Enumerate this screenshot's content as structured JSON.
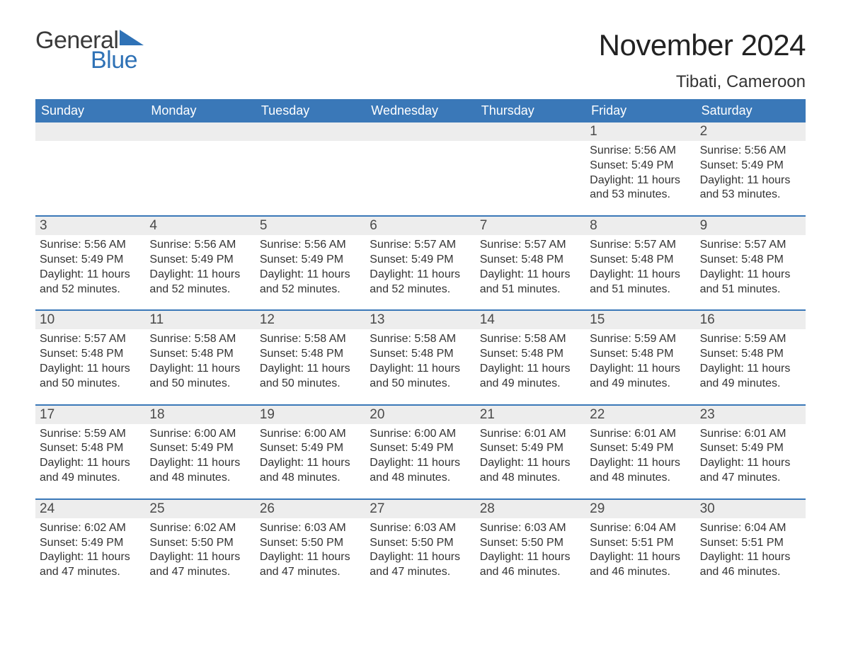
{
  "brand": {
    "word1": "General",
    "word2": "Blue",
    "accent_color": "#2f72b6",
    "text_color": "#3a3a3a"
  },
  "header": {
    "title": "November 2024",
    "location": "Tibati, Cameroon",
    "title_fontsize": 42,
    "location_fontsize": 24
  },
  "calendar": {
    "type": "table",
    "header_bg": "#3a78b8",
    "header_text_color": "#ffffff",
    "daynum_bg": "#ededed",
    "row_divider_color": "#3a78b8",
    "body_text_color": "#333333",
    "background_color": "#ffffff",
    "columns": [
      "Sunday",
      "Monday",
      "Tuesday",
      "Wednesday",
      "Thursday",
      "Friday",
      "Saturday"
    ],
    "weeks": [
      [
        {
          "empty": true
        },
        {
          "empty": true
        },
        {
          "empty": true
        },
        {
          "empty": true
        },
        {
          "empty": true
        },
        {
          "day": "1",
          "sunrise": "Sunrise: 5:56 AM",
          "sunset": "Sunset: 5:49 PM",
          "daylight": "Daylight: 11 hours and 53 minutes."
        },
        {
          "day": "2",
          "sunrise": "Sunrise: 5:56 AM",
          "sunset": "Sunset: 5:49 PM",
          "daylight": "Daylight: 11 hours and 53 minutes."
        }
      ],
      [
        {
          "day": "3",
          "sunrise": "Sunrise: 5:56 AM",
          "sunset": "Sunset: 5:49 PM",
          "daylight": "Daylight: 11 hours and 52 minutes."
        },
        {
          "day": "4",
          "sunrise": "Sunrise: 5:56 AM",
          "sunset": "Sunset: 5:49 PM",
          "daylight": "Daylight: 11 hours and 52 minutes."
        },
        {
          "day": "5",
          "sunrise": "Sunrise: 5:56 AM",
          "sunset": "Sunset: 5:49 PM",
          "daylight": "Daylight: 11 hours and 52 minutes."
        },
        {
          "day": "6",
          "sunrise": "Sunrise: 5:57 AM",
          "sunset": "Sunset: 5:49 PM",
          "daylight": "Daylight: 11 hours and 52 minutes."
        },
        {
          "day": "7",
          "sunrise": "Sunrise: 5:57 AM",
          "sunset": "Sunset: 5:48 PM",
          "daylight": "Daylight: 11 hours and 51 minutes."
        },
        {
          "day": "8",
          "sunrise": "Sunrise: 5:57 AM",
          "sunset": "Sunset: 5:48 PM",
          "daylight": "Daylight: 11 hours and 51 minutes."
        },
        {
          "day": "9",
          "sunrise": "Sunrise: 5:57 AM",
          "sunset": "Sunset: 5:48 PM",
          "daylight": "Daylight: 11 hours and 51 minutes."
        }
      ],
      [
        {
          "day": "10",
          "sunrise": "Sunrise: 5:57 AM",
          "sunset": "Sunset: 5:48 PM",
          "daylight": "Daylight: 11 hours and 50 minutes."
        },
        {
          "day": "11",
          "sunrise": "Sunrise: 5:58 AM",
          "sunset": "Sunset: 5:48 PM",
          "daylight": "Daylight: 11 hours and 50 minutes."
        },
        {
          "day": "12",
          "sunrise": "Sunrise: 5:58 AM",
          "sunset": "Sunset: 5:48 PM",
          "daylight": "Daylight: 11 hours and 50 minutes."
        },
        {
          "day": "13",
          "sunrise": "Sunrise: 5:58 AM",
          "sunset": "Sunset: 5:48 PM",
          "daylight": "Daylight: 11 hours and 50 minutes."
        },
        {
          "day": "14",
          "sunrise": "Sunrise: 5:58 AM",
          "sunset": "Sunset: 5:48 PM",
          "daylight": "Daylight: 11 hours and 49 minutes."
        },
        {
          "day": "15",
          "sunrise": "Sunrise: 5:59 AM",
          "sunset": "Sunset: 5:48 PM",
          "daylight": "Daylight: 11 hours and 49 minutes."
        },
        {
          "day": "16",
          "sunrise": "Sunrise: 5:59 AM",
          "sunset": "Sunset: 5:48 PM",
          "daylight": "Daylight: 11 hours and 49 minutes."
        }
      ],
      [
        {
          "day": "17",
          "sunrise": "Sunrise: 5:59 AM",
          "sunset": "Sunset: 5:48 PM",
          "daylight": "Daylight: 11 hours and 49 minutes."
        },
        {
          "day": "18",
          "sunrise": "Sunrise: 6:00 AM",
          "sunset": "Sunset: 5:49 PM",
          "daylight": "Daylight: 11 hours and 48 minutes."
        },
        {
          "day": "19",
          "sunrise": "Sunrise: 6:00 AM",
          "sunset": "Sunset: 5:49 PM",
          "daylight": "Daylight: 11 hours and 48 minutes."
        },
        {
          "day": "20",
          "sunrise": "Sunrise: 6:00 AM",
          "sunset": "Sunset: 5:49 PM",
          "daylight": "Daylight: 11 hours and 48 minutes."
        },
        {
          "day": "21",
          "sunrise": "Sunrise: 6:01 AM",
          "sunset": "Sunset: 5:49 PM",
          "daylight": "Daylight: 11 hours and 48 minutes."
        },
        {
          "day": "22",
          "sunrise": "Sunrise: 6:01 AM",
          "sunset": "Sunset: 5:49 PM",
          "daylight": "Daylight: 11 hours and 48 minutes."
        },
        {
          "day": "23",
          "sunrise": "Sunrise: 6:01 AM",
          "sunset": "Sunset: 5:49 PM",
          "daylight": "Daylight: 11 hours and 47 minutes."
        }
      ],
      [
        {
          "day": "24",
          "sunrise": "Sunrise: 6:02 AM",
          "sunset": "Sunset: 5:49 PM",
          "daylight": "Daylight: 11 hours and 47 minutes."
        },
        {
          "day": "25",
          "sunrise": "Sunrise: 6:02 AM",
          "sunset": "Sunset: 5:50 PM",
          "daylight": "Daylight: 11 hours and 47 minutes."
        },
        {
          "day": "26",
          "sunrise": "Sunrise: 6:03 AM",
          "sunset": "Sunset: 5:50 PM",
          "daylight": "Daylight: 11 hours and 47 minutes."
        },
        {
          "day": "27",
          "sunrise": "Sunrise: 6:03 AM",
          "sunset": "Sunset: 5:50 PM",
          "daylight": "Daylight: 11 hours and 47 minutes."
        },
        {
          "day": "28",
          "sunrise": "Sunrise: 6:03 AM",
          "sunset": "Sunset: 5:50 PM",
          "daylight": "Daylight: 11 hours and 46 minutes."
        },
        {
          "day": "29",
          "sunrise": "Sunrise: 6:04 AM",
          "sunset": "Sunset: 5:51 PM",
          "daylight": "Daylight: 11 hours and 46 minutes."
        },
        {
          "day": "30",
          "sunrise": "Sunrise: 6:04 AM",
          "sunset": "Sunset: 5:51 PM",
          "daylight": "Daylight: 11 hours and 46 minutes."
        }
      ]
    ]
  }
}
